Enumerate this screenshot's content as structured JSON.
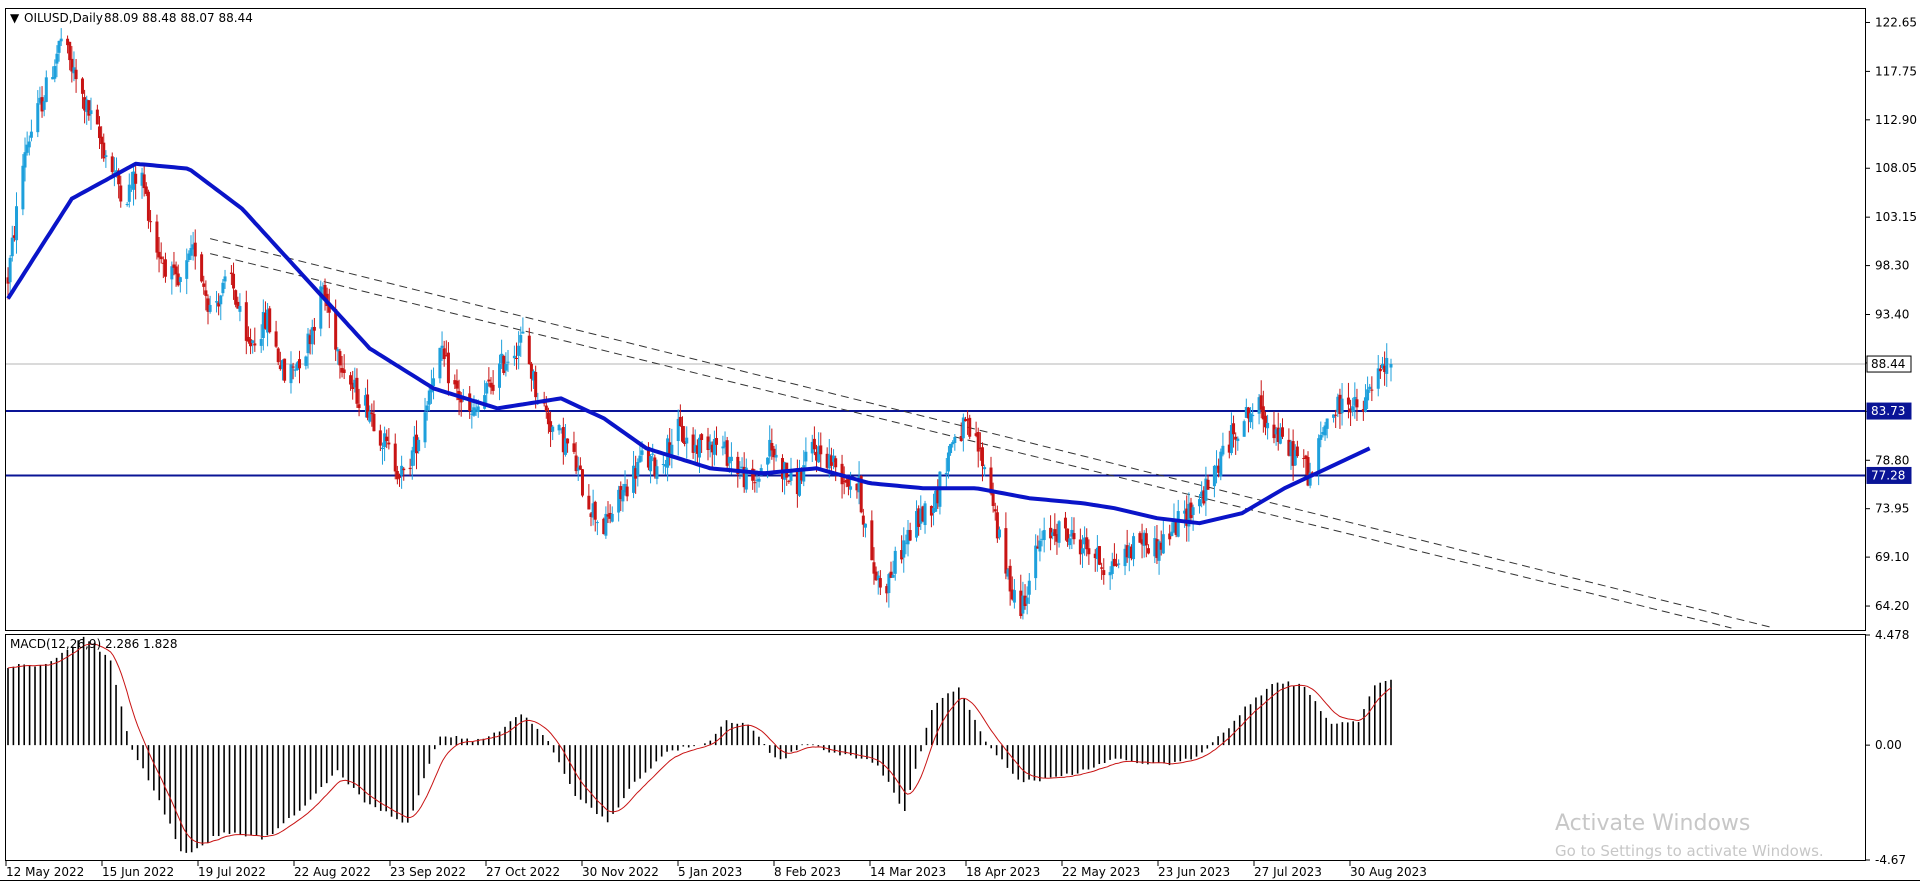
{
  "header": {
    "symbol_label": "OILUSD,Daily",
    "ohlc": "88.09 88.48 88.07 88.44",
    "dropdown_glyph": "▼"
  },
  "macd_header": {
    "label": "MACD(12,26,9) 2.286 1.828"
  },
  "watermark": {
    "title": "Activate Windows",
    "subtitle": "Go to Settings to activate Windows."
  },
  "colors": {
    "bull": "#1ea0dc",
    "bear": "#c81414",
    "ma": "#0a14c8",
    "level": "#0a1496",
    "trendline": "#333333",
    "signal": "#c81414",
    "histogram": "#000000",
    "current_price_line": "#b4b4b4"
  },
  "chart_data": [
    {
      "type": "candlestick",
      "title": "OILUSD,Daily",
      "yticks": [
        "122.65",
        "117.75",
        "112.90",
        "108.05",
        "103.15",
        "98.30",
        "93.40",
        "88.55",
        "83.70",
        "78.80",
        "73.95",
        "69.10",
        "64.20"
      ],
      "ylim": [
        61.8,
        124.0
      ],
      "xticks": [
        "12 May 2022",
        "15 Jun 2022",
        "19 Jul 2022",
        "22 Aug 2022",
        "23 Sep 2022",
        "27 Oct 2022",
        "30 Nov 2022",
        "5 Jan 2023",
        "8 Feb 2023",
        "14 Mar 2023",
        "18 Apr 2023",
        "22 May 2023",
        "23 Jun 2023",
        "27 Jul 2023",
        "30 Aug 2023"
      ],
      "ohlc_last": {
        "open": 88.09,
        "high": 88.48,
        "low": 88.07,
        "close": 88.44
      },
      "current_price_label": "88.44",
      "horizontal_levels": [
        {
          "value": 83.73,
          "label": "83.73"
        },
        {
          "value": 77.28,
          "label": "77.28"
        }
      ],
      "moving_average_path": [
        [
          0,
          95.0
        ],
        [
          30,
          105.0
        ],
        [
          60,
          108.5
        ],
        [
          85,
          108.0
        ],
        [
          110,
          104.0
        ],
        [
          140,
          97.0
        ],
        [
          170,
          90.0
        ],
        [
          200,
          86.0
        ],
        [
          230,
          84.0
        ],
        [
          260,
          85.0
        ],
        [
          280,
          83.0
        ],
        [
          300,
          80.0
        ],
        [
          330,
          78.0
        ],
        [
          355,
          77.5
        ],
        [
          380,
          78.0
        ],
        [
          405,
          76.5
        ],
        [
          430,
          76.0
        ],
        [
          455,
          76.0
        ],
        [
          480,
          75.0
        ],
        [
          505,
          74.5
        ],
        [
          520,
          74.0
        ],
        [
          540,
          73.0
        ],
        [
          560,
          72.5
        ],
        [
          580,
          73.5
        ],
        [
          600,
          76.0
        ],
        [
          620,
          78.0
        ],
        [
          640,
          80.0
        ]
      ],
      "trendlines": [
        {
          "from": [
            95,
            101.0
          ],
          "to": [
            830,
            62.0
          ]
        },
        {
          "from": [
            95,
            99.5
          ],
          "to": [
            810,
            62.0
          ]
        }
      ],
      "anchors": [
        [
          0,
          97
        ],
        [
          8,
          110
        ],
        [
          18,
          116
        ],
        [
          25,
          121
        ],
        [
          35,
          115
        ],
        [
          45,
          110
        ],
        [
          55,
          105
        ],
        [
          62,
          108
        ],
        [
          70,
          100
        ],
        [
          80,
          96
        ],
        [
          88,
          100
        ],
        [
          95,
          94
        ],
        [
          105,
          97
        ],
        [
          112,
          90
        ],
        [
          122,
          93
        ],
        [
          130,
          87
        ],
        [
          140,
          90
        ],
        [
          148,
          96
        ],
        [
          155,
          90
        ],
        [
          162,
          86
        ],
        [
          170,
          84
        ],
        [
          178,
          80
        ],
        [
          186,
          77
        ],
        [
          194,
          82
        ],
        [
          202,
          90
        ],
        [
          210,
          86
        ],
        [
          218,
          83
        ],
        [
          226,
          86
        ],
        [
          234,
          89
        ],
        [
          242,
          91
        ],
        [
          248,
          86
        ],
        [
          256,
          82
        ],
        [
          264,
          80
        ],
        [
          272,
          75
        ],
        [
          280,
          72
        ],
        [
          290,
          76
        ],
        [
          298,
          79
        ],
        [
          306,
          78
        ],
        [
          314,
          82
        ],
        [
          322,
          80
        ],
        [
          330,
          81
        ],
        [
          340,
          79
        ],
        [
          350,
          76
        ],
        [
          358,
          80
        ],
        [
          364,
          78
        ],
        [
          370,
          76
        ],
        [
          378,
          80
        ],
        [
          386,
          79
        ],
        [
          394,
          77
        ],
        [
          400,
          76
        ],
        [
          406,
          68
        ],
        [
          412,
          66
        ],
        [
          420,
          70
        ],
        [
          428,
          73
        ],
        [
          436,
          75
        ],
        [
          444,
          81
        ],
        [
          450,
          82
        ],
        [
          456,
          80
        ],
        [
          462,
          76
        ],
        [
          468,
          68
        ],
        [
          476,
          64
        ],
        [
          484,
          70
        ],
        [
          492,
          72
        ],
        [
          500,
          71
        ],
        [
          508,
          70
        ],
        [
          516,
          68
        ],
        [
          524,
          69
        ],
        [
          532,
          71
        ],
        [
          540,
          70
        ],
        [
          548,
          72
        ],
        [
          556,
          74
        ],
        [
          564,
          76
        ],
        [
          572,
          80
        ],
        [
          580,
          83
        ],
        [
          588,
          84
        ],
        [
          595,
          82
        ],
        [
          600,
          80
        ],
        [
          608,
          79
        ],
        [
          612,
          77
        ],
        [
          620,
          83
        ],
        [
          630,
          85
        ],
        [
          636,
          83
        ],
        [
          640,
          86
        ],
        [
          645,
          87.5
        ],
        [
          650,
          88.44
        ]
      ]
    },
    {
      "type": "bar",
      "title": "MACD(12,26,9) 2.286 1.828",
      "yticks": [
        "4.478",
        "0.00",
        "-4.67"
      ],
      "ylim": [
        -4.67,
        4.478
      ],
      "series": [
        {
          "name": "MACD",
          "values": []
        },
        {
          "name": "Signal",
          "values": []
        }
      ],
      "macd_anchors": [
        [
          0,
          3.2
        ],
        [
          15,
          3.3
        ],
        [
          28,
          4.4
        ],
        [
          38,
          3.5
        ],
        [
          45,
          0.0
        ],
        [
          55,
          -2.0
        ],
        [
          65,
          -4.5
        ],
        [
          80,
          -3.5
        ],
        [
          95,
          -3.8
        ],
        [
          110,
          -2.5
        ],
        [
          122,
          -1.0
        ],
        [
          132,
          -2.3
        ],
        [
          148,
          -3.2
        ],
        [
          160,
          0.4
        ],
        [
          172,
          0.2
        ],
        [
          182,
          0.5
        ],
        [
          190,
          1.3
        ],
        [
          200,
          0.2
        ],
        [
          210,
          -2.0
        ],
        [
          222,
          -3.1
        ],
        [
          232,
          -1.5
        ],
        [
          245,
          -0.2
        ],
        [
          258,
          0.0
        ],
        [
          266,
          1.0
        ],
        [
          275,
          0.8
        ],
        [
          285,
          -0.7
        ],
        [
          295,
          0.1
        ],
        [
          305,
          -0.3
        ],
        [
          315,
          -0.5
        ],
        [
          322,
          -0.8
        ],
        [
          332,
          -2.7
        ],
        [
          342,
          1.5
        ],
        [
          352,
          2.4
        ],
        [
          362,
          0.1
        ],
        [
          375,
          -1.5
        ],
        [
          390,
          -1.3
        ],
        [
          410,
          -0.6
        ],
        [
          430,
          -0.8
        ],
        [
          440,
          -0.5
        ],
        [
          450,
          0.5
        ],
        [
          458,
          1.5
        ],
        [
          470,
          2.6
        ],
        [
          480,
          2.4
        ],
        [
          490,
          0.8
        ],
        [
          500,
          1.0
        ],
        [
          506,
          2.4
        ],
        [
          512,
          2.7
        ]
      ]
    }
  ]
}
